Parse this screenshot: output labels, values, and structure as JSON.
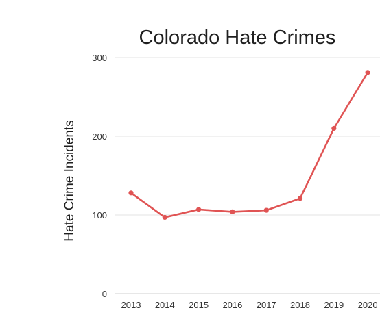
{
  "chart_data": {
    "type": "line",
    "title": "Colorado Hate Crimes",
    "xlabel": "",
    "ylabel": "Hate Crime Incidents",
    "categories": [
      "2013",
      "2014",
      "2015",
      "2016",
      "2017",
      "2018",
      "2019",
      "2020"
    ],
    "series": [
      {
        "values": [
          128,
          97,
          107,
          104,
          106,
          121,
          210,
          281
        ]
      }
    ],
    "ylim": [
      0,
      300
    ],
    "yticks": [
      0,
      100,
      200,
      300
    ],
    "grid": true,
    "colors": {
      "series": "#e05454",
      "grid": "#e3e3e3"
    }
  }
}
